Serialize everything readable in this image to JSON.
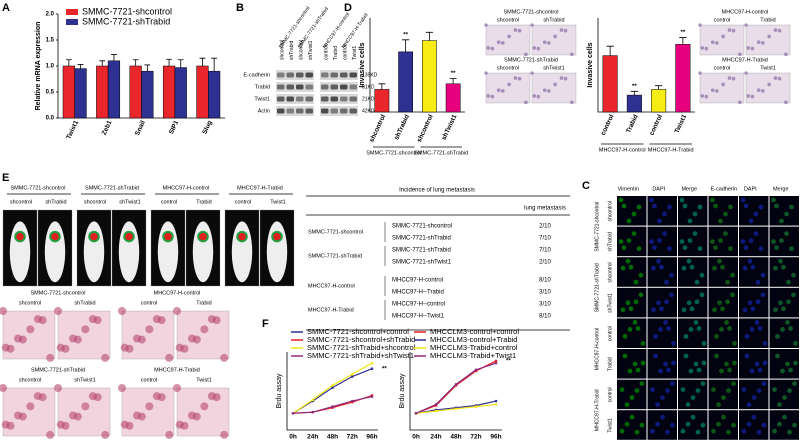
{
  "panel_labels": [
    "A",
    "B",
    "C",
    "D",
    "E",
    "F"
  ],
  "chart_data": [
    {
      "type": "bar",
      "ylabel": "Relative mRNA expression",
      "categories": [
        "Twist1",
        "Zeb1",
        "Snail",
        "SIP1",
        "Slug"
      ],
      "series": [
        {
          "name": "SMMC-7721-shcontrol",
          "color": "#e8262b",
          "values": [
            1.0,
            1.0,
            1.0,
            1.0,
            1.0
          ],
          "errors": [
            0.12,
            0.1,
            0.12,
            0.13,
            0.15
          ]
        },
        {
          "name": "SMMC-7721-shTrabid",
          "color": "#2e3192",
          "values": [
            0.95,
            1.1,
            0.9,
            0.97,
            0.9
          ],
          "errors": [
            0.08,
            0.12,
            0.12,
            0.15,
            0.25
          ]
        }
      ],
      "ylim": [
        0,
        2
      ],
      "yticks": [
        {
          "value": 0,
          "label": "0.0"
        },
        {
          "value": 0.5,
          "label": "0.5"
        },
        {
          "value": 1,
          "label": "1.0"
        },
        {
          "value": 1.5,
          "label": "1.5"
        },
        {
          "value": 2,
          "label": "2.0"
        }
      ]
    },
    {
      "type": "bar",
      "ylabel": "Invasive cells",
      "categories": [
        "shcontrol",
        "shTrabid",
        "shcontrol",
        "shTwist1"
      ],
      "values": [
        60,
        160,
        190,
        75
      ],
      "errors": [
        15,
        32,
        22,
        14
      ],
      "colors": [
        "#e8262b",
        "#2e3192",
        "#f7ec13",
        "#e6007e"
      ],
      "annotations": [
        null,
        "**",
        null,
        "**"
      ],
      "groups": [
        "SMMC-7721-shcontrol",
        "SMMC-7721-shTrabid"
      ],
      "ylim": [
        0,
        250
      ]
    },
    {
      "type": "bar",
      "ylabel": "Invasive cells",
      "categories": [
        "control",
        "Trabid",
        "control",
        "Twist1"
      ],
      "values": [
        150,
        45,
        60,
        180
      ],
      "errors": [
        25,
        10,
        10,
        18
      ],
      "colors": [
        "#e8262b",
        "#2e3192",
        "#f7ec13",
        "#e6007e"
      ],
      "annotations": [
        null,
        "**",
        null,
        "**"
      ],
      "groups": [
        "MHCC97-H-control",
        "MHCC97-H-Trabid"
      ],
      "ylim": [
        0,
        250
      ]
    },
    {
      "type": "line",
      "ylabel": "Brdu assay",
      "categories": [
        "0h",
        "24h",
        "48h",
        "72h",
        "96h"
      ],
      "series": [
        {
          "name": "SMMC-7721-shcontrol+control",
          "color": "#2e3192",
          "values": [
            1.5,
            2.6,
            3.8,
            4.8,
            5.5
          ]
        },
        {
          "name": "SMMC-7721-shcontrol+shTrabid",
          "color": "#e31e24",
          "values": [
            1.5,
            1.6,
            2.0,
            2.5,
            3.1
          ]
        },
        {
          "name": "SMMC-7721-shTrabid+shcontrol",
          "color": "#f5e60f",
          "values": [
            1.5,
            2.7,
            4.0,
            5.0,
            6.0
          ]
        },
        {
          "name": "SMMC-7721-shTrabid+shTwist1",
          "color": "#8e2a7e",
          "values": [
            1.5,
            1.6,
            2.1,
            2.6,
            3.0
          ]
        }
      ],
      "annotation": "**",
      "ylim": [
        0,
        7
      ]
    },
    {
      "type": "line",
      "ylabel": "Brdu assay",
      "categories": [
        "0h",
        "24h",
        "48h",
        "72h",
        "96h"
      ],
      "series": [
        {
          "name": "MHCCLM3-control+control",
          "color": "#e31e24",
          "values": [
            1.5,
            2.2,
            4.0,
            5.3,
            6.2
          ]
        },
        {
          "name": "MHCCLM3-control+Trabid",
          "color": "#2e3192",
          "values": [
            1.5,
            1.8,
            2.0,
            2.2,
            2.6
          ]
        },
        {
          "name": "MHCCLM3-Trabid+control",
          "color": "#f5e60f",
          "values": [
            1.5,
            1.7,
            1.9,
            2.1,
            2.3
          ]
        },
        {
          "name": "MHCCLM3-Trabid+Twist1",
          "color": "#8e2a7e",
          "values": [
            1.5,
            2.3,
            4.1,
            5.4,
            6.0
          ]
        }
      ],
      "annotation": "**",
      "ylim": [
        0,
        7
      ]
    }
  ],
  "blot": {
    "groups": [
      "SMMC-7721-shcontrol",
      "SMMC-7721-shTrabid",
      "MHCC97-H-control",
      "MHCC97-H-Trabid"
    ],
    "lanes": [
      "shcontrol",
      "shTrabid",
      "shcontrol",
      "shTwist1",
      "control",
      "Trabid",
      "control",
      "Twist1"
    ],
    "rows": [
      {
        "protein": "E-cadherin",
        "size": "135KD"
      },
      {
        "protein": "Trabid",
        "size": "81KD"
      },
      {
        "protein": "Twist1",
        "size": "21KD"
      },
      {
        "protein": "Actin",
        "size": "42KD"
      }
    ]
  },
  "invasion_images": [
    {
      "title": "SMMC-7721-shcontrol",
      "panels": [
        "shcontrol",
        "shTrabid"
      ]
    },
    {
      "title": "SMMC-7721-shTrabid",
      "panels": [
        "shcontrol",
        "shTwist1"
      ]
    },
    {
      "title": "MHCC97-H-control",
      "panels": [
        "control",
        "Trabid"
      ]
    },
    {
      "title": "MHCC97-H-Trabid",
      "panels": [
        "control",
        "Twist1"
      ]
    }
  ],
  "mice": [
    {
      "title": "SMMC-7721-shcontrol",
      "panels": [
        "shcontrol",
        "shTrabid"
      ]
    },
    {
      "title": "SMMC-7721-shTrabid",
      "panels": [
        "shcontrol",
        "shTwist1"
      ]
    },
    {
      "title": "MHCC97-H-control",
      "panels": [
        "control",
        "Trabid"
      ]
    },
    {
      "title": "MHCC97-H-Trabid",
      "panels": [
        "control",
        "Twist1"
      ]
    }
  ],
  "histology": [
    {
      "title": "SMMC-7721-shcontrol",
      "panels": [
        "shcontrol",
        "shTrabid"
      ]
    },
    {
      "title": "SMMC-7721-shTrabid",
      "panels": [
        "shcontrol",
        "shTwist1"
      ]
    },
    {
      "title": "MHCC97-H-control",
      "panels": [
        "control",
        "Trabid"
      ]
    },
    {
      "title": "MHCC97-H-Trabid",
      "panels": [
        "control",
        "Twist1"
      ]
    }
  ],
  "table": {
    "title": "Incidence of lung metastasis",
    "column": "lung metastasis",
    "groups": [
      "SMMC-7721-shcontrol",
      "SMMC-7721-shTrabid",
      "MHCC97-H-control",
      "MHCC97-H-Trabid"
    ],
    "rows": [
      [
        "SMMC-7721-shcontrol",
        "2/10"
      ],
      [
        "SMMC-7721-shTrabid",
        "7/10"
      ],
      [
        "SMMC-7721-shTrabid",
        "7/10"
      ],
      [
        "SMMC-7721-shTwist1",
        "2/10"
      ],
      [
        "MHCC97-H-control",
        "8/10"
      ],
      [
        "MHCC97-H--Trabid",
        "3/10"
      ],
      [
        "MHCC97-H--control",
        "3/10"
      ],
      [
        "MHCC97-H--Twist1",
        "8/10"
      ]
    ]
  },
  "if_grid": {
    "columns": [
      "Vimentin",
      "DAPI",
      "Merge",
      "E-cadherin",
      "DAPI",
      "Merge"
    ],
    "row_groups": [
      {
        "title": "SMMC-7721-shcontrol",
        "rows": [
          "shcontrol",
          "shTrabid"
        ]
      },
      {
        "title": "SMMC-7721-shTrabid",
        "rows": [
          "shcontrol",
          "shTwist1"
        ]
      },
      {
        "title": "MHCC97-H-control",
        "rows": [
          "control",
          "Trabid"
        ]
      },
      {
        "title": "MHCC97-H-Trabid",
        "rows": [
          "control",
          "Twist1"
        ]
      }
    ]
  }
}
